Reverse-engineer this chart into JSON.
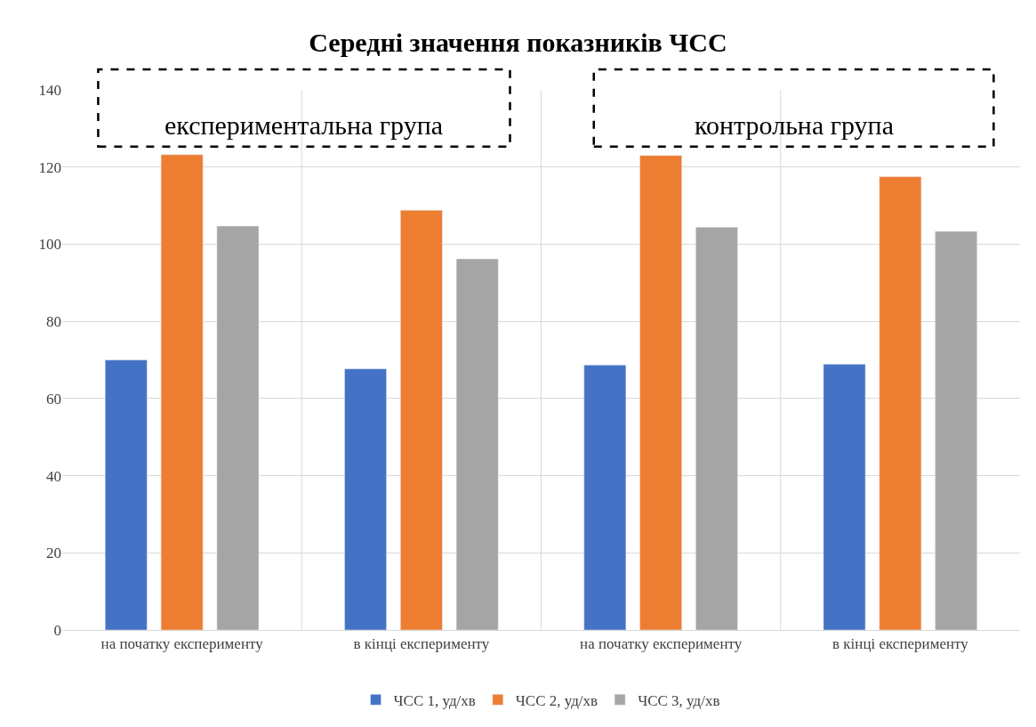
{
  "chart_data": {
    "type": "bar",
    "title": "Середні значення показників ЧСС",
    "categories": [
      "на початку експерименту",
      "в кінці експерименту",
      "на початку експерименту",
      "в кінці експерименту"
    ],
    "series": [
      {
        "name": "ЧСС 1, уд/хв",
        "color": "#4472c4",
        "values": [
          70.0,
          67.7,
          68.7,
          68.9
        ]
      },
      {
        "name": "ЧСС 2, уд/хв",
        "color": "#ed7d31",
        "values": [
          123.2,
          108.8,
          123.0,
          117.5
        ]
      },
      {
        "name": "ЧСС 3, уд/хв",
        "color": "#a5a5a5",
        "values": [
          104.7,
          96.2,
          104.4,
          103.3
        ]
      }
    ],
    "ylim": [
      0,
      140
    ],
    "yticks": [
      0,
      20,
      40,
      60,
      80,
      100,
      120,
      140
    ],
    "grid": true,
    "legend": "bottom",
    "annotations": [
      "експериментальна група",
      "контрольна група"
    ]
  }
}
